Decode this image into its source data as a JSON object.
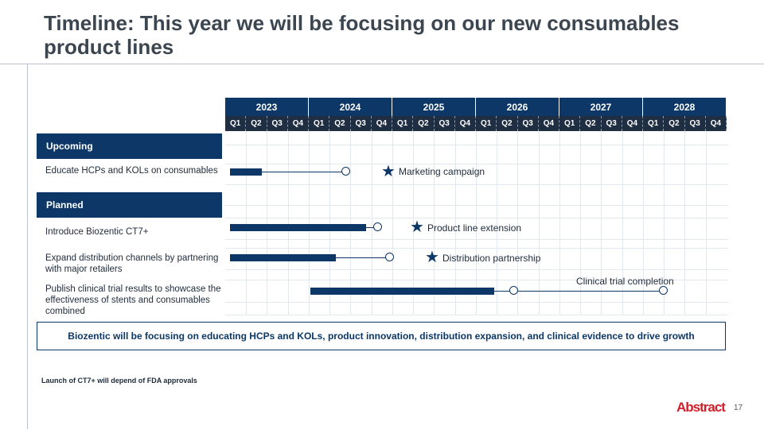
{
  "slide": {
    "title": "Timeline: This year we will be focusing on our new consumables product lines",
    "summary": "Biozentic will be focusing on educating HCPs and KOLs, product innovation, distribution expansion, and clinical evidence to drive growth",
    "footnote": "Launch of CT7+ will depend of FDA approvals",
    "logo": "Abstract",
    "page_number": "17"
  },
  "timeline": {
    "years": [
      "2023",
      "2024",
      "2025",
      "2026",
      "2027",
      "2028"
    ],
    "quarters": [
      "Q1",
      "Q2",
      "Q3",
      "Q4"
    ]
  },
  "sections": {
    "upcoming": "Upcoming",
    "planned": "Planned"
  },
  "tasks": [
    {
      "label": "Educate HCPs and KOLs on consumables"
    },
    {
      "label": "Introduce Biozentic CT7+"
    },
    {
      "label": "Expand distribution channels by partnering with major retailers"
    },
    {
      "label": "Publish clinical trial results to showcase the effectiveness of stents and consumables combined"
    }
  ],
  "milestones": [
    {
      "label": "Marketing campaign"
    },
    {
      "label": "Product line extension"
    },
    {
      "label": "Distribution partnership"
    },
    {
      "label": "Clinical trial completion"
    }
  ],
  "colors": {
    "navy": "#0c3766",
    "header_dark": "#1f2e42",
    "brand_red": "#d0202b"
  },
  "icons": {
    "milestone": "star-icon",
    "end_marker": "circle-icon"
  }
}
